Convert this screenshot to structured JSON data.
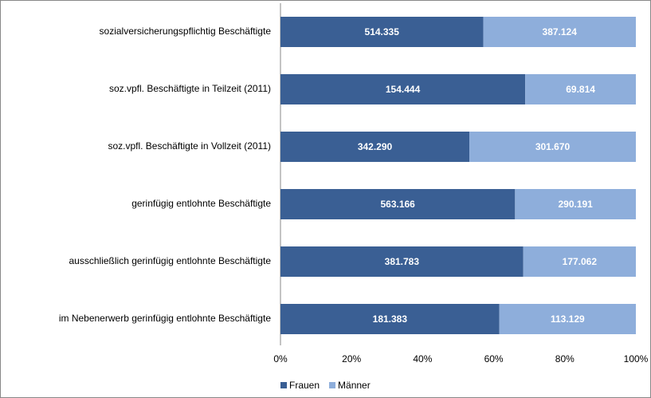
{
  "chart_data": {
    "type": "bar",
    "orientation": "horizontal",
    "stacking": "percent",
    "categories": [
      "sozialversicherungspflichtig Beschäftigte",
      "soz.vpfl. Beschäftigte in Teilzeit  (2011)",
      "soz.vpfl. Beschäftigte in Vollzeit (2011)",
      "gerinfügig entlohnte Beschäftigte",
      "ausschließlich gerinfügig entlohnte Beschäftigte",
      "im Nebenerwerb gerinfügig entlohnte Beschäftigte"
    ],
    "series": [
      {
        "name": "Frauen",
        "color": "#3a5f94",
        "values": [
          514335,
          154444,
          342290,
          563166,
          381783,
          181383
        ],
        "value_labels": [
          "514.335",
          "154.444",
          "342.290",
          "563.166",
          "381.783",
          "181.383"
        ]
      },
      {
        "name": "Männer",
        "color": "#8eaedb",
        "values": [
          387124,
          69814,
          301670,
          290191,
          177062,
          113129
        ],
        "value_labels": [
          "387.124",
          "69.814",
          "301.670",
          "290.191",
          "177.062",
          "113.129"
        ]
      }
    ],
    "xlim": [
      0,
      100
    ],
    "xticks": [
      {
        "value": 0,
        "label": "0%"
      },
      {
        "value": 20,
        "label": "20%"
      },
      {
        "value": 40,
        "label": "40%"
      },
      {
        "value": 60,
        "label": "60%"
      },
      {
        "value": 80,
        "label": "80%"
      },
      {
        "value": 100,
        "label": "100%"
      }
    ],
    "legend": "bottom"
  }
}
